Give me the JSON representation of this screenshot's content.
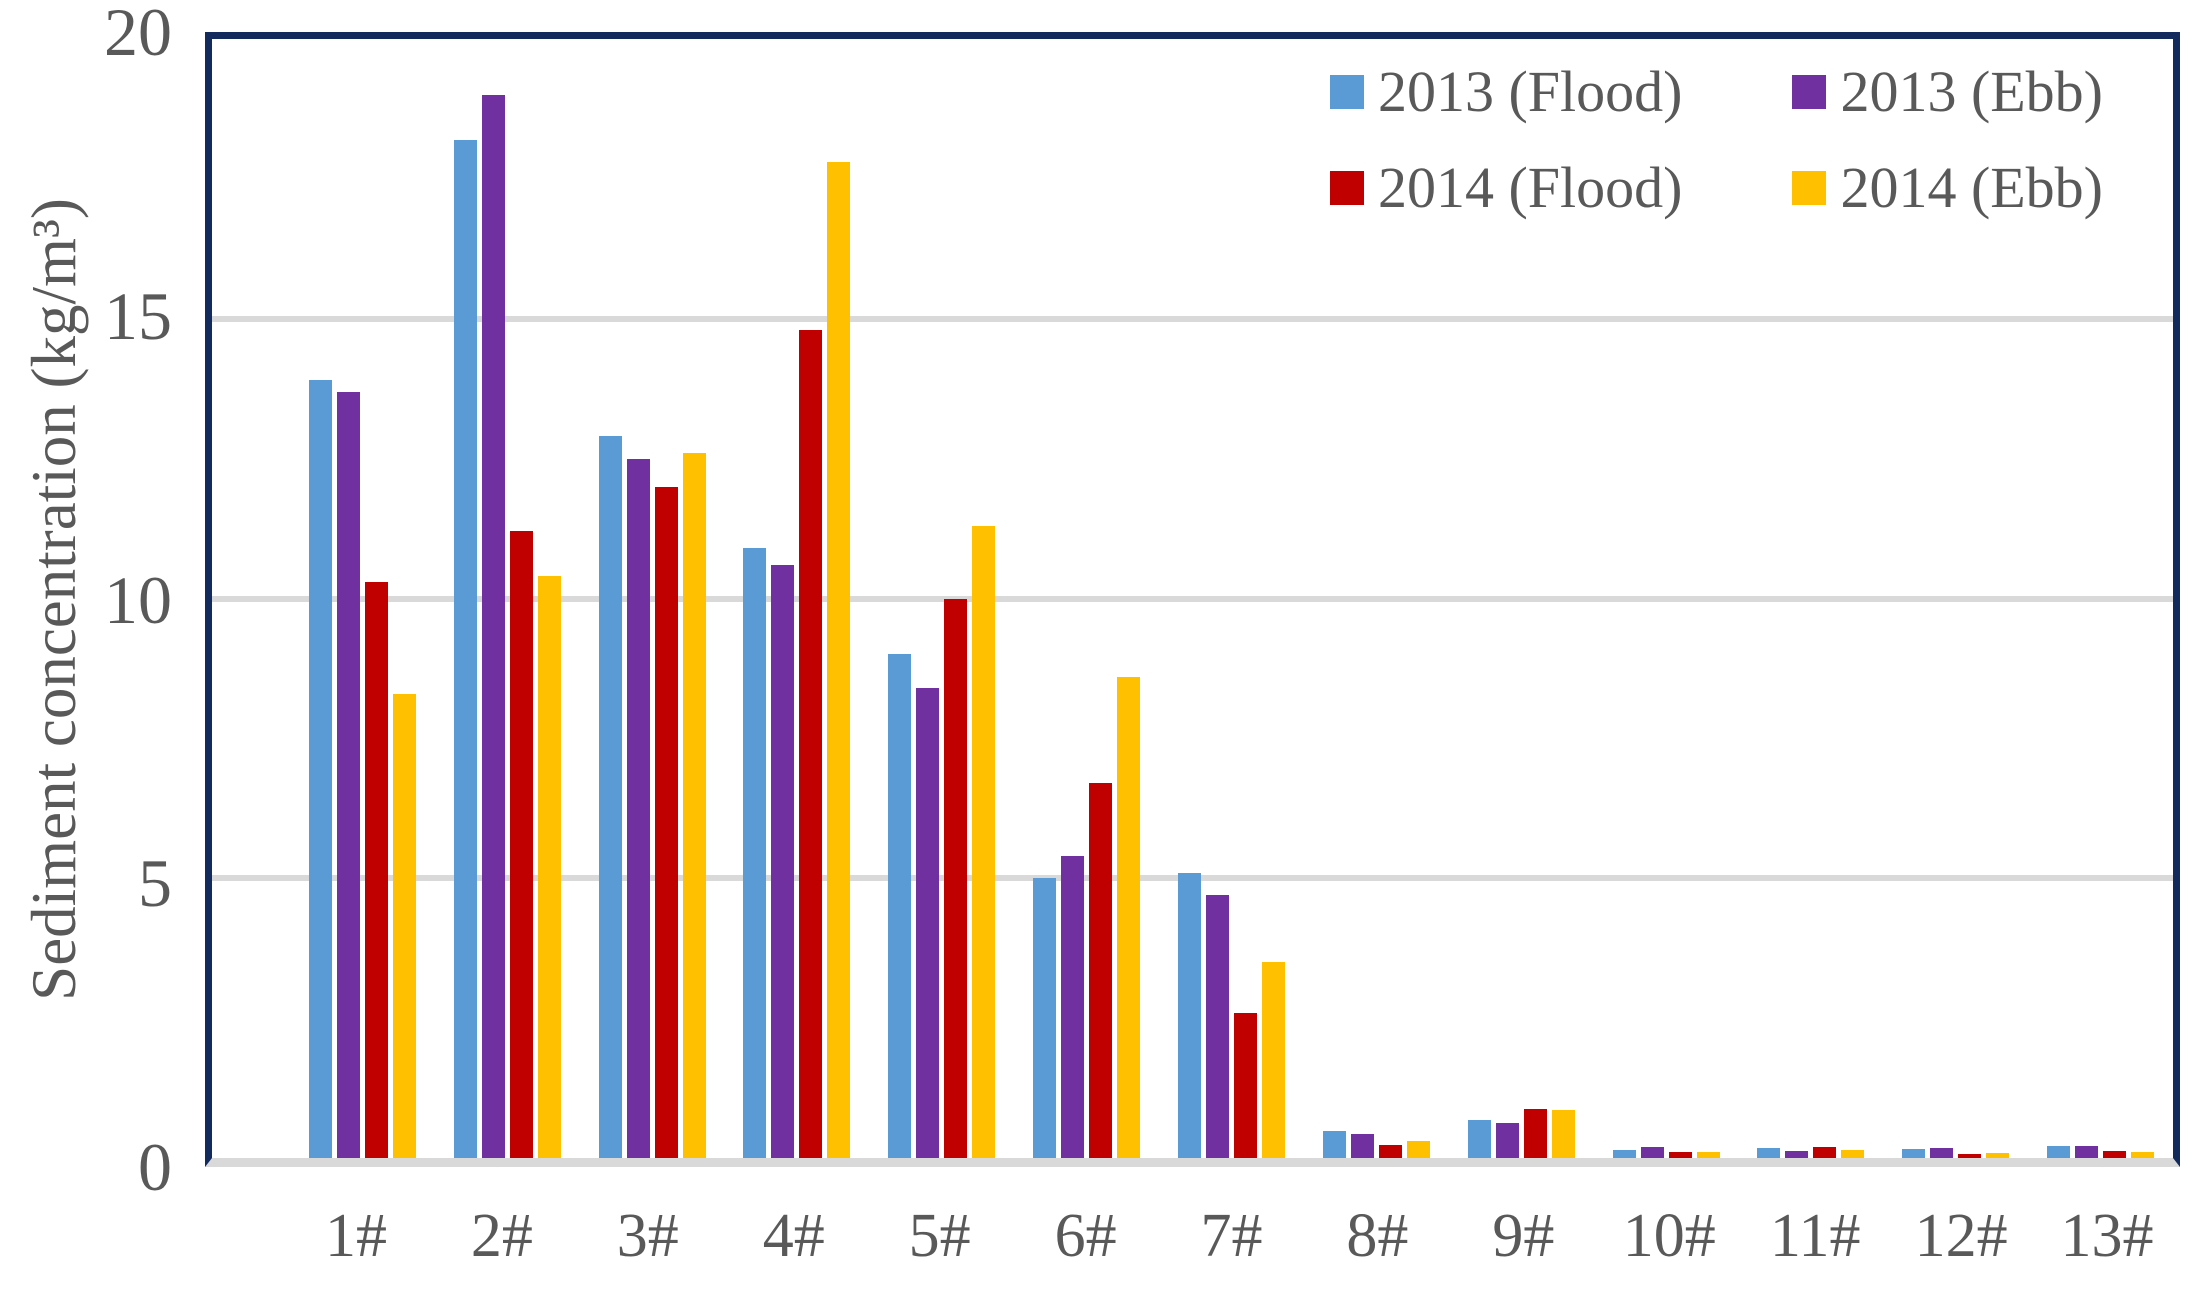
{
  "figure": {
    "background": "#FFFFFF",
    "text_color": "#595959",
    "plot_border_color": "#122B5C",
    "gridline_color": "#D9D9D9",
    "baseline_color": "#D9D9D9"
  },
  "chart_data": {
    "type": "bar",
    "title": "",
    "xlabel": "",
    "ylabel": "Sediment concentration (kg/m³)",
    "ylim": [
      0,
      20
    ],
    "yticks": [
      0,
      5,
      10,
      15,
      20
    ],
    "grid": "horizontal",
    "legend_position": "top-right-inside",
    "categories": [
      "1#",
      "2#",
      "3#",
      "4#",
      "5#",
      "6#",
      "7#",
      "8#",
      "9#",
      "10#",
      "11#",
      "12#",
      "13#"
    ],
    "series": [
      {
        "name": "2013 (Flood)",
        "color": "#5B9BD5",
        "values": [
          13.9,
          18.2,
          12.9,
          10.9,
          9.0,
          5.0,
          5.1,
          0.48,
          0.68,
          0.15,
          0.18,
          0.17,
          0.21
        ]
      },
      {
        "name": "2013 (Ebb)",
        "color": "#7030A0",
        "values": [
          13.7,
          19.0,
          12.5,
          10.6,
          8.4,
          5.4,
          4.7,
          0.43,
          0.63,
          0.19,
          0.13,
          0.18,
          0.22
        ]
      },
      {
        "name": "2014 (Flood)",
        "color": "#C00000",
        "values": [
          10.3,
          11.2,
          12.0,
          14.8,
          10.0,
          6.7,
          2.6,
          0.23,
          0.87,
          0.11,
          0.19,
          0.08,
          0.13
        ]
      },
      {
        "name": "2014 (Ebb)",
        "color": "#FFC000",
        "values": [
          8.3,
          10.4,
          12.6,
          17.8,
          11.3,
          8.6,
          3.5,
          0.31,
          0.85,
          0.11,
          0.14,
          0.09,
          0.1
        ]
      }
    ]
  }
}
